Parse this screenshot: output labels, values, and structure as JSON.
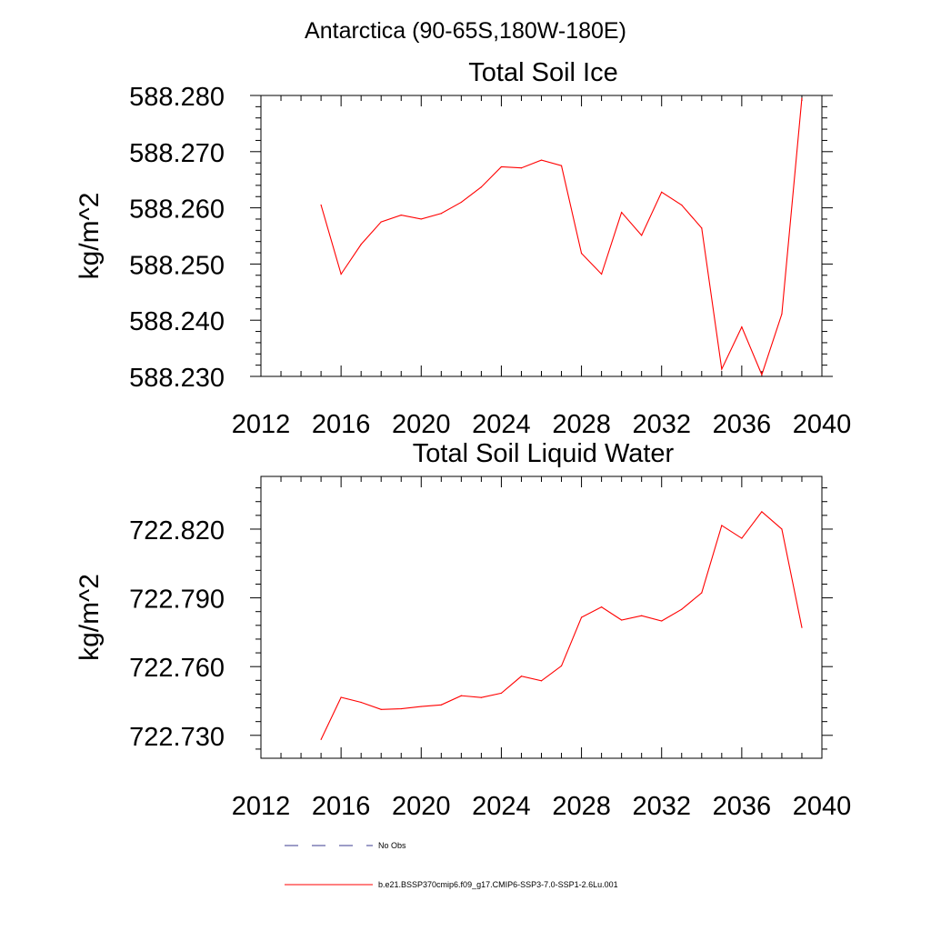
{
  "page_title": "Antarctica (90-65S,180W-180E)",
  "colors": {
    "series": "#ff0000",
    "obs": "#3b3b8f",
    "axis": "#000000"
  },
  "chart_data": [
    {
      "type": "line",
      "title": "Total Soil Ice",
      "ylabel": "kg/m^2",
      "xlim": [
        2012,
        2040
      ],
      "ylim": [
        588.23,
        588.28
      ],
      "xticks": [
        2012,
        2016,
        2020,
        2024,
        2028,
        2032,
        2036,
        2040
      ],
      "xtick_labels": [
        "2012",
        "2016",
        "2020",
        "2024",
        "2028",
        "2032",
        "2036",
        "2040"
      ],
      "yticks": [
        588.23,
        588.24,
        588.25,
        588.26,
        588.27,
        588.28
      ],
      "ytick_labels": [
        "588.230",
        "588.240",
        "588.250",
        "588.260",
        "588.270",
        "588.280"
      ],
      "x": [
        2015,
        2016,
        2017,
        2018,
        2019,
        2020,
        2021,
        2022,
        2023,
        2024,
        2025,
        2026,
        2027,
        2028,
        2029,
        2030,
        2031,
        2032,
        2033,
        2034,
        2035,
        2036,
        2037,
        2038,
        2039
      ],
      "series": [
        {
          "name": "b.e21.BSSP370cmip6.f09_g17.CMIP6-SSP3-7.0-SSP1-2.6Lu.001",
          "values": [
            588.2605,
            588.2482,
            588.2535,
            588.2575,
            588.2587,
            588.258,
            588.259,
            588.261,
            588.2637,
            588.2673,
            588.2671,
            588.2685,
            588.2675,
            588.2519,
            588.2482,
            588.2592,
            588.2551,
            588.2628,
            588.2605,
            588.2564,
            588.2313,
            588.2388,
            588.2303,
            588.2411,
            588.2795
          ]
        }
      ]
    },
    {
      "type": "line",
      "title": "Total Soil Liquid Water",
      "ylabel": "kg/m^2",
      "xlim": [
        2012,
        2040
      ],
      "ylim": [
        722.72,
        722.843
      ],
      "xticks": [
        2012,
        2016,
        2020,
        2024,
        2028,
        2032,
        2036,
        2040
      ],
      "xtick_labels": [
        "2012",
        "2016",
        "2020",
        "2024",
        "2028",
        "2032",
        "2036",
        "2040"
      ],
      "yticks": [
        722.73,
        722.76,
        722.79,
        722.82
      ],
      "ytick_labels": [
        "722.730",
        "722.760",
        "722.790",
        "722.820"
      ],
      "x": [
        2015,
        2016,
        2017,
        2018,
        2019,
        2020,
        2021,
        2022,
        2023,
        2024,
        2025,
        2026,
        2027,
        2028,
        2029,
        2030,
        2031,
        2032,
        2033,
        2034,
        2035,
        2036,
        2037,
        2038,
        2039
      ],
      "series": [
        {
          "name": "b.e21.BSSP370cmip6.f09_g17.CMIP6-SSP3-7.0-SSP1-2.6Lu.001",
          "values": [
            722.7282,
            722.7466,
            722.7444,
            722.7413,
            722.7416,
            722.7426,
            722.7433,
            722.7473,
            722.7465,
            722.7484,
            722.7558,
            722.7538,
            722.7603,
            722.7815,
            722.786,
            722.7803,
            722.7822,
            722.7799,
            722.785,
            722.7922,
            722.8216,
            722.816,
            722.8276,
            722.82,
            722.7771
          ]
        }
      ]
    }
  ],
  "legend": [
    {
      "label": "No Obs",
      "style": "dashed"
    },
    {
      "label": "b.e21.BSSP370cmip6.f09_g17.CMIP6-SSP3-7.0-SSP1-2.6Lu.001",
      "style": "solid"
    }
  ]
}
